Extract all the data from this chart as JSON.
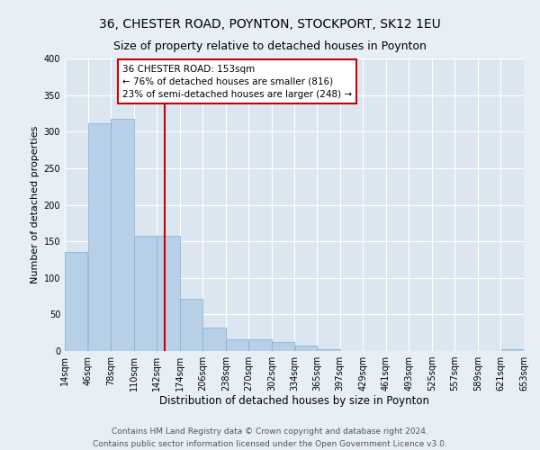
{
  "title1": "36, CHESTER ROAD, POYNTON, STOCKPORT, SK12 1EU",
  "title2": "Size of property relative to detached houses in Poynton",
  "xlabel": "Distribution of detached houses by size in Poynton",
  "ylabel": "Number of detached properties",
  "footer1": "Contains HM Land Registry data © Crown copyright and database right 2024.",
  "footer2": "Contains public sector information licensed under the Open Government Licence v3.0.",
  "annotation_title": "36 CHESTER ROAD: 153sqm",
  "annotation_line1": "← 76% of detached houses are smaller (816)",
  "annotation_line2": "23% of semi-detached houses are larger (248) →",
  "property_size": 153,
  "bin_edges": [
    14,
    46,
    78,
    110,
    142,
    174,
    206,
    238,
    270,
    302,
    334,
    365,
    397,
    429,
    461,
    493,
    525,
    557,
    589,
    621,
    653
  ],
  "bar_heights": [
    136,
    311,
    318,
    158,
    158,
    71,
    32,
    16,
    16,
    12,
    8,
    3,
    0,
    0,
    0,
    0,
    0,
    0,
    0,
    2
  ],
  "bar_color": "#b8cfe8",
  "bar_edge_color": "#7aafd4",
  "vline_color": "#cc0000",
  "vline_x": 153,
  "ylim": [
    0,
    400
  ],
  "yticks": [
    0,
    50,
    100,
    150,
    200,
    250,
    300,
    350,
    400
  ],
  "fig_bg_color": "#e8eef5",
  "plot_bg_color": "#dce6f0",
  "annotation_box_color": "#ffffff",
  "annotation_border_color": "#cc0000",
  "title1_fontsize": 10,
  "title2_fontsize": 9,
  "xlabel_fontsize": 8.5,
  "ylabel_fontsize": 8,
  "tick_fontsize": 7,
  "annotation_fontsize": 7.5,
  "footer_fontsize": 6.5
}
